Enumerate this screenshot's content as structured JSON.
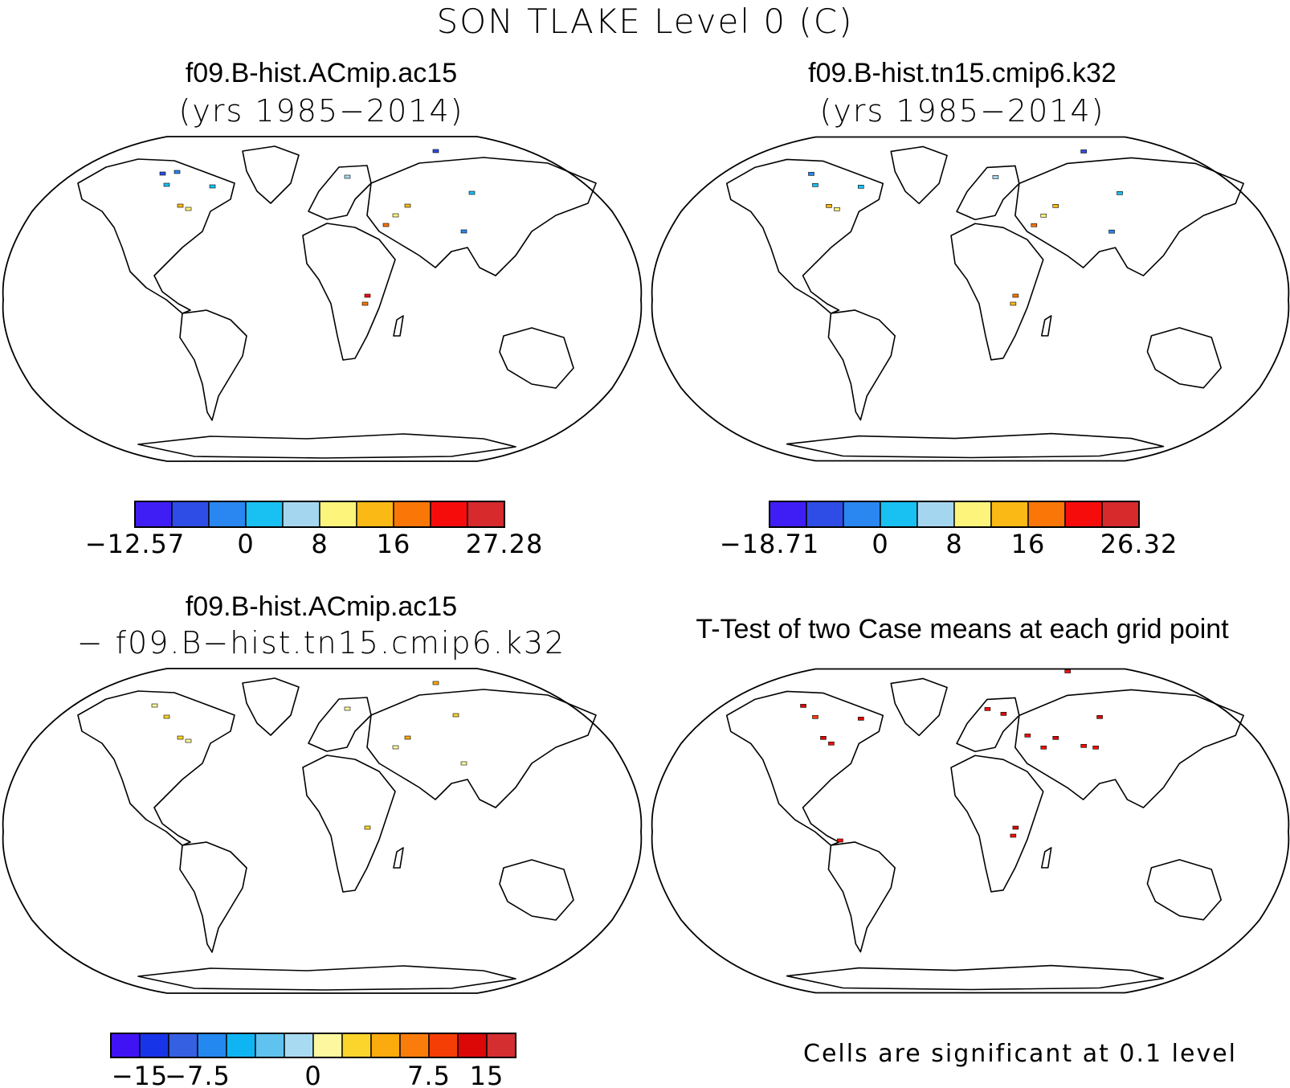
{
  "figure": {
    "title": "SON TLAKE Level 0 (C)"
  },
  "panels": [
    {
      "id": "case1",
      "title": "f09.B-hist.ACmip.ac15",
      "subtitle": "(yrs 1985−2014)",
      "colorbar": {
        "colors": [
          "#3f1ef5",
          "#2e4de6",
          "#2a86f0",
          "#19c0f2",
          "#a5d6f0",
          "#fdf47c",
          "#fbb916",
          "#fa7606",
          "#f60d0b",
          "#d62a2d"
        ],
        "tick_labels": [
          "−12.57",
          "0",
          "8",
          "16",
          "27.28"
        ],
        "tick_at_boundary": [
          0,
          3,
          5,
          7,
          10
        ]
      }
    },
    {
      "id": "case2",
      "title": "f09.B-hist.tn15.cmip6.k32",
      "subtitle": "(yrs 1985−2014)",
      "colorbar": {
        "colors": [
          "#3f1ef5",
          "#2e4de6",
          "#2a86f0",
          "#19c0f2",
          "#a5d6f0",
          "#fdf47c",
          "#fbb916",
          "#fa7606",
          "#f60d0b",
          "#d62a2d"
        ],
        "tick_labels": [
          "−18.71",
          "0",
          "8",
          "16",
          "26.32"
        ],
        "tick_at_boundary": [
          0,
          3,
          5,
          7,
          10
        ]
      }
    },
    {
      "id": "difference",
      "title": "f09.B-hist.ACmip.ac15",
      "subtitle": "− f09.B−hist.tn15.cmip6.k32",
      "colorbar": {
        "colors": [
          "#4013f5",
          "#1834e8",
          "#3560e2",
          "#2388f0",
          "#0fb5f3",
          "#60c2ef",
          "#a8dbf2",
          "#fdf8a0",
          "#fbd52c",
          "#fbab0d",
          "#fa7d0c",
          "#f53d06",
          "#dc0707",
          "#d42e31"
        ],
        "tick_labels": [
          "−15",
          "−7.5",
          "0",
          "7.5",
          "15"
        ],
        "tick_at_boundary": [
          1,
          3,
          7,
          11,
          13
        ]
      }
    },
    {
      "id": "ttest",
      "title": "T-Test of two Case means at each grid point",
      "note": "Cells are significant at 0.1 level"
    }
  ]
}
